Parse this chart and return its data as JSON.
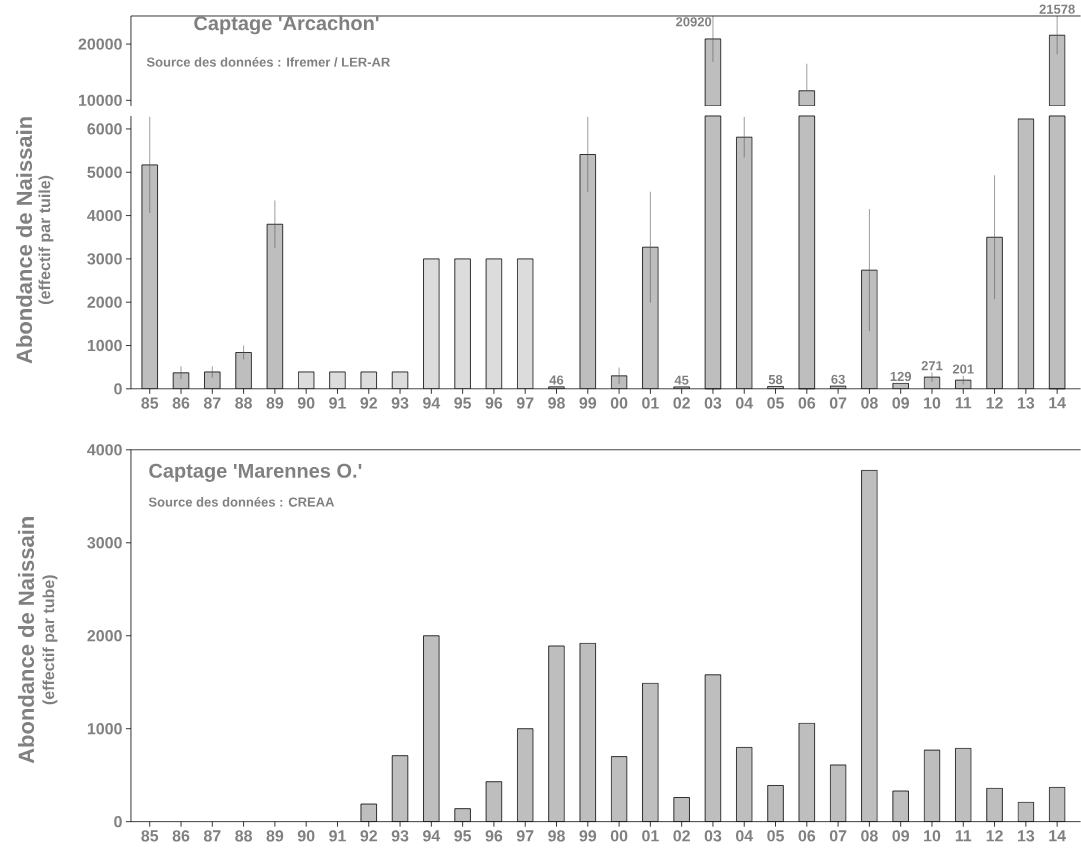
{
  "chart_data": [
    {
      "type": "bar",
      "title": "Captage 'Arcachon'",
      "subtitle": "Source des données : Ifremer / LER-AR",
      "categories": [
        "85",
        "86",
        "87",
        "88",
        "89",
        "90",
        "91",
        "92",
        "93",
        "94",
        "95",
        "96",
        "97",
        "98",
        "99",
        "00",
        "01",
        "02",
        "03",
        "04",
        "05",
        "06",
        "07",
        "08",
        "09",
        "10",
        "11",
        "12",
        "13",
        "14"
      ],
      "values": [
        null,
        null,
        null,
        null,
        null,
        null,
        null,
        null,
        null,
        null,
        null,
        null,
        null,
        null,
        null,
        null,
        null,
        null,
        20920,
        null,
        null,
        11700,
        null,
        null,
        null,
        null,
        null,
        null,
        null,
        21578
      ],
      "errors": [
        null,
        null,
        null,
        null,
        null,
        null,
        null,
        null,
        null,
        null,
        null,
        null,
        null,
        null,
        null,
        null,
        null,
        null,
        4080,
        null,
        null,
        [
          11700,
          16500
        ],
        null,
        null,
        null,
        null,
        null,
        null,
        null,
        3420
      ],
      "value_labels": [
        null,
        null,
        null,
        null,
        null,
        null,
        null,
        null,
        null,
        null,
        null,
        null,
        null,
        null,
        null,
        null,
        null,
        null,
        "20920",
        null,
        null,
        null,
        null,
        null,
        null,
        null,
        null,
        null,
        null,
        "21578"
      ],
      "color": "#bebebe",
      "ylim": [
        9000,
        25000
      ],
      "yticks": [
        10000,
        20000
      ],
      "tick_labels": "y"
    },
    {
      "type": "bar",
      "ylabel": "Abondance de Naissain",
      "annotations": [
        "(effectif par tuile)"
      ],
      "categories": [
        "85",
        "86",
        "87",
        "88",
        "89",
        "90",
        "91",
        "92",
        "93",
        "94",
        "95",
        "96",
        "97",
        "98",
        "99",
        "00",
        "01",
        "02",
        "03",
        "04",
        "05",
        "06",
        "07",
        "08",
        "09",
        "10",
        "11",
        "12",
        "13",
        "14"
      ],
      "values": [
        5170,
        370,
        390,
        840,
        3800,
        390,
        390,
        390,
        390,
        3000,
        3000,
        3000,
        3000,
        46,
        5410,
        300,
        3270,
        45,
        null,
        5810,
        58,
        null,
        63,
        2740,
        129,
        271,
        201,
        3500,
        6230,
        null
      ],
      "errors": [
        1110,
        150,
        130,
        160,
        550,
        null,
        null,
        null,
        null,
        null,
        null,
        null,
        null,
        null,
        870,
        190,
        1280,
        null,
        null,
        470,
        null,
        null,
        null,
        1410,
        null,
        110,
        100,
        1430,
        null,
        null
      ],
      "value_labels": [
        null,
        null,
        null,
        null,
        null,
        null,
        null,
        null,
        null,
        null,
        null,
        null,
        null,
        "46",
        null,
        null,
        null,
        "45",
        null,
        null,
        "58",
        null,
        "63",
        null,
        "129",
        "271",
        "201",
        null,
        null,
        null
      ],
      "colors": [
        "#bebebe",
        "#bebebe",
        "#bebebe",
        "#bebebe",
        "#bebebe",
        "#dcdcdc",
        "#dcdcdc",
        "#dcdcdc",
        "#dcdcdc",
        "#dcdcdc",
        "#dcdcdc",
        "#dcdcdc",
        "#dcdcdc",
        "#bebebe",
        "#bebebe",
        "#bebebe",
        "#bebebe",
        "#bebebe",
        "#bebebe",
        "#bebebe",
        "#bebebe",
        "#bebebe",
        "#bebebe",
        "#bebebe",
        "#bebebe",
        "#bebebe",
        "#bebebe",
        "#bebebe",
        "#bebebe",
        "#bebebe"
      ],
      "ylim": [
        0,
        6300
      ],
      "yticks": [
        0,
        1000,
        2000,
        3000,
        4000,
        5000,
        6000
      ]
    },
    {
      "type": "bar",
      "title": "Captage 'Marennes O.'",
      "subtitle": "Source des données : CREAA",
      "ylabel": "Abondance de Naissain",
      "annotations": [
        "(effectif par tube)"
      ],
      "categories": [
        "85",
        "86",
        "87",
        "88",
        "89",
        "90",
        "91",
        "92",
        "93",
        "94",
        "95",
        "96",
        "97",
        "98",
        "99",
        "00",
        "01",
        "02",
        "03",
        "04",
        "05",
        "06",
        "07",
        "08",
        "09",
        "10",
        "11",
        "12",
        "13",
        "14"
      ],
      "values": [
        null,
        null,
        null,
        null,
        null,
        null,
        null,
        190,
        710,
        2000,
        140,
        430,
        1000,
        1890,
        1920,
        700,
        1490,
        260,
        1580,
        800,
        390,
        1060,
        610,
        3780,
        330,
        770,
        790,
        360,
        210,
        370
      ],
      "color": "#bebebe",
      "ylim": [
        0,
        4000
      ],
      "yticks": [
        0,
        1000,
        2000,
        3000,
        4000
      ]
    }
  ]
}
